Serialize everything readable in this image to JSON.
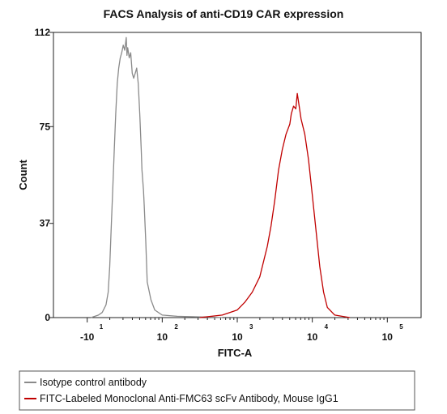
{
  "chart_data": {
    "type": "line",
    "title": "FACS Analysis of anti-CD19 CAR expression",
    "xlabel": "FITC-A",
    "ylabel": "Count",
    "ylim": [
      0,
      112
    ],
    "yticks": [
      "0",
      "37",
      "75",
      "112"
    ],
    "x_scale": "biexponential log",
    "xlim_decades": [
      0.55,
      5.45
    ],
    "xticks": [
      {
        "base": "-10",
        "exp": "1",
        "pos": 1.0
      },
      {
        "base": "10",
        "exp": "2",
        "pos": 2.0
      },
      {
        "base": "10",
        "exp": "3",
        "pos": 3.0
      },
      {
        "base": "10",
        "exp": "4",
        "pos": 4.0
      },
      {
        "base": "10",
        "exp": "5",
        "pos": 5.0
      }
    ],
    "series": [
      {
        "name": "Isotype control antibody",
        "color": "#8a8a8a",
        "x": [
          1.05,
          1.15,
          1.2,
          1.25,
          1.28,
          1.3,
          1.32,
          1.34,
          1.36,
          1.38,
          1.4,
          1.42,
          1.44,
          1.46,
          1.48,
          1.5,
          1.52,
          1.53,
          1.54,
          1.56,
          1.58,
          1.6,
          1.62,
          1.64,
          1.66,
          1.68,
          1.7,
          1.72,
          1.73,
          1.75,
          1.76,
          1.78,
          1.8,
          1.85,
          1.9,
          2.0,
          2.2,
          2.5,
          2.8
        ],
        "y": [
          0,
          1,
          2,
          5,
          10,
          20,
          35,
          50,
          65,
          80,
          92,
          98,
          102,
          104,
          107,
          105,
          110,
          103,
          106,
          102,
          104,
          96,
          94,
          96,
          98,
          92,
          80,
          66,
          58,
          50,
          44,
          30,
          14,
          7,
          3,
          1,
          0.5,
          0.3,
          0
        ]
      },
      {
        "name": "FITC-Labeled Monoclonal Anti-FMC63 scFv Antibody, Mouse IgG1",
        "color": "#c00000",
        "x": [
          2.5,
          2.8,
          3.0,
          3.1,
          3.2,
          3.3,
          3.4,
          3.45,
          3.5,
          3.55,
          3.6,
          3.65,
          3.7,
          3.72,
          3.75,
          3.78,
          3.8,
          3.82,
          3.85,
          3.9,
          3.95,
          4.0,
          4.05,
          4.1,
          4.15,
          4.2,
          4.3,
          4.5
        ],
        "y": [
          0,
          1,
          3,
          6,
          10,
          16,
          28,
          36,
          46,
          58,
          66,
          72,
          76,
          80,
          83,
          82,
          88,
          84,
          78,
          72,
          62,
          48,
          34,
          20,
          10,
          4,
          1,
          0
        ]
      }
    ],
    "grid": false,
    "legend_position": "bottom"
  }
}
